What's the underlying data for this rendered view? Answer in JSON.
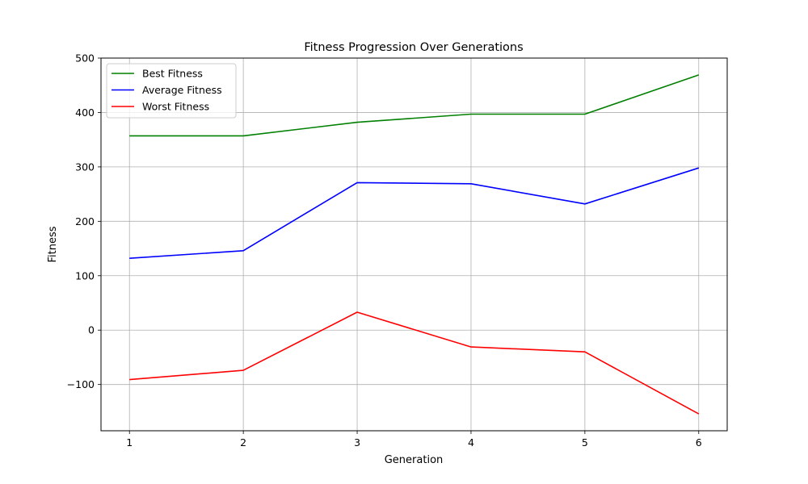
{
  "chart_data": {
    "type": "line",
    "title": "Fitness Progression Over Generations",
    "xlabel": "Generation",
    "ylabel": "Fitness",
    "x": [
      1,
      2,
      3,
      4,
      5,
      6
    ],
    "xlim": [
      0.75,
      6.25
    ],
    "ylim": [
      -185,
      500
    ],
    "xticks": [
      1,
      2,
      3,
      4,
      5,
      6
    ],
    "xtick_labels": [
      "1",
      "2",
      "3",
      "4",
      "5",
      "6"
    ],
    "yticks": [
      -100,
      0,
      100,
      200,
      300,
      400,
      500
    ],
    "ytick_labels": [
      "−100",
      "0",
      "100",
      "200",
      "300",
      "400",
      "500"
    ],
    "grid": true,
    "legend_position": "top-left",
    "series": [
      {
        "name": "Best Fitness",
        "color": "#008000",
        "values": [
          357,
          357,
          382,
          397,
          397,
          469
        ]
      },
      {
        "name": "Average Fitness",
        "color": "#0000ff",
        "values": [
          132,
          146,
          271,
          269,
          232,
          298
        ]
      },
      {
        "name": "Worst Fitness",
        "color": "#ff0000",
        "values": [
          -91,
          -74,
          33,
          -31,
          -40,
          -154
        ]
      }
    ]
  }
}
